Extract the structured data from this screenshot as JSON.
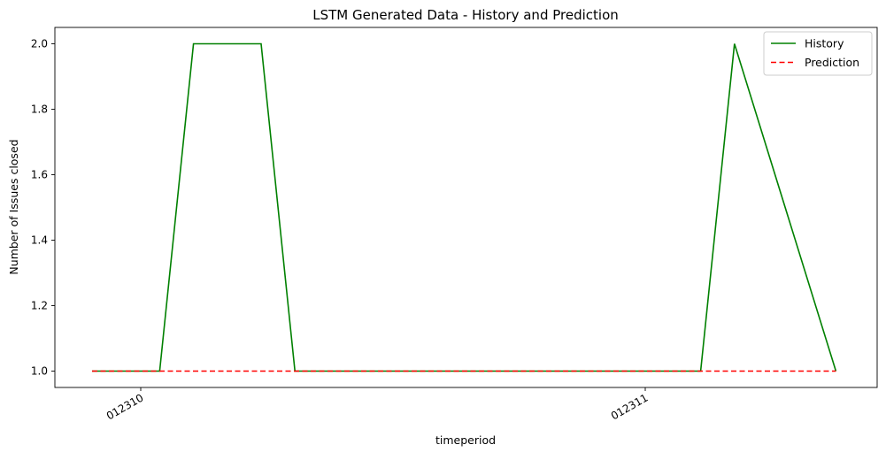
{
  "chart_data": {
    "type": "line",
    "title": "LSTM Generated Data - History and Prediction",
    "xlabel": "timeperiod",
    "ylabel": "Number of Issues closed",
    "x_ticks": [
      "012310",
      "012311"
    ],
    "y_ticks": [
      "1.0",
      "1.2",
      "1.4",
      "1.6",
      "1.8",
      "2.0"
    ],
    "ylim": [
      0.95,
      2.05
    ],
    "grid": false,
    "legend_position": "top-right",
    "series": [
      {
        "name": "History",
        "color": "#008000",
        "style": "solid",
        "points": [
          {
            "x": 0,
            "y": 1
          },
          {
            "x": 2,
            "y": 1
          },
          {
            "x": 3,
            "y": 2
          },
          {
            "x": 5,
            "y": 2
          },
          {
            "x": 6,
            "y": 1
          },
          {
            "x": 18,
            "y": 1
          },
          {
            "x": 19,
            "y": 2
          },
          {
            "x": 22,
            "y": 1
          }
        ]
      },
      {
        "name": "Prediction",
        "color": "#ff0000",
        "style": "dashed",
        "points": [
          {
            "x": 0,
            "y": 1
          },
          {
            "x": 22,
            "y": 1
          }
        ]
      }
    ]
  }
}
